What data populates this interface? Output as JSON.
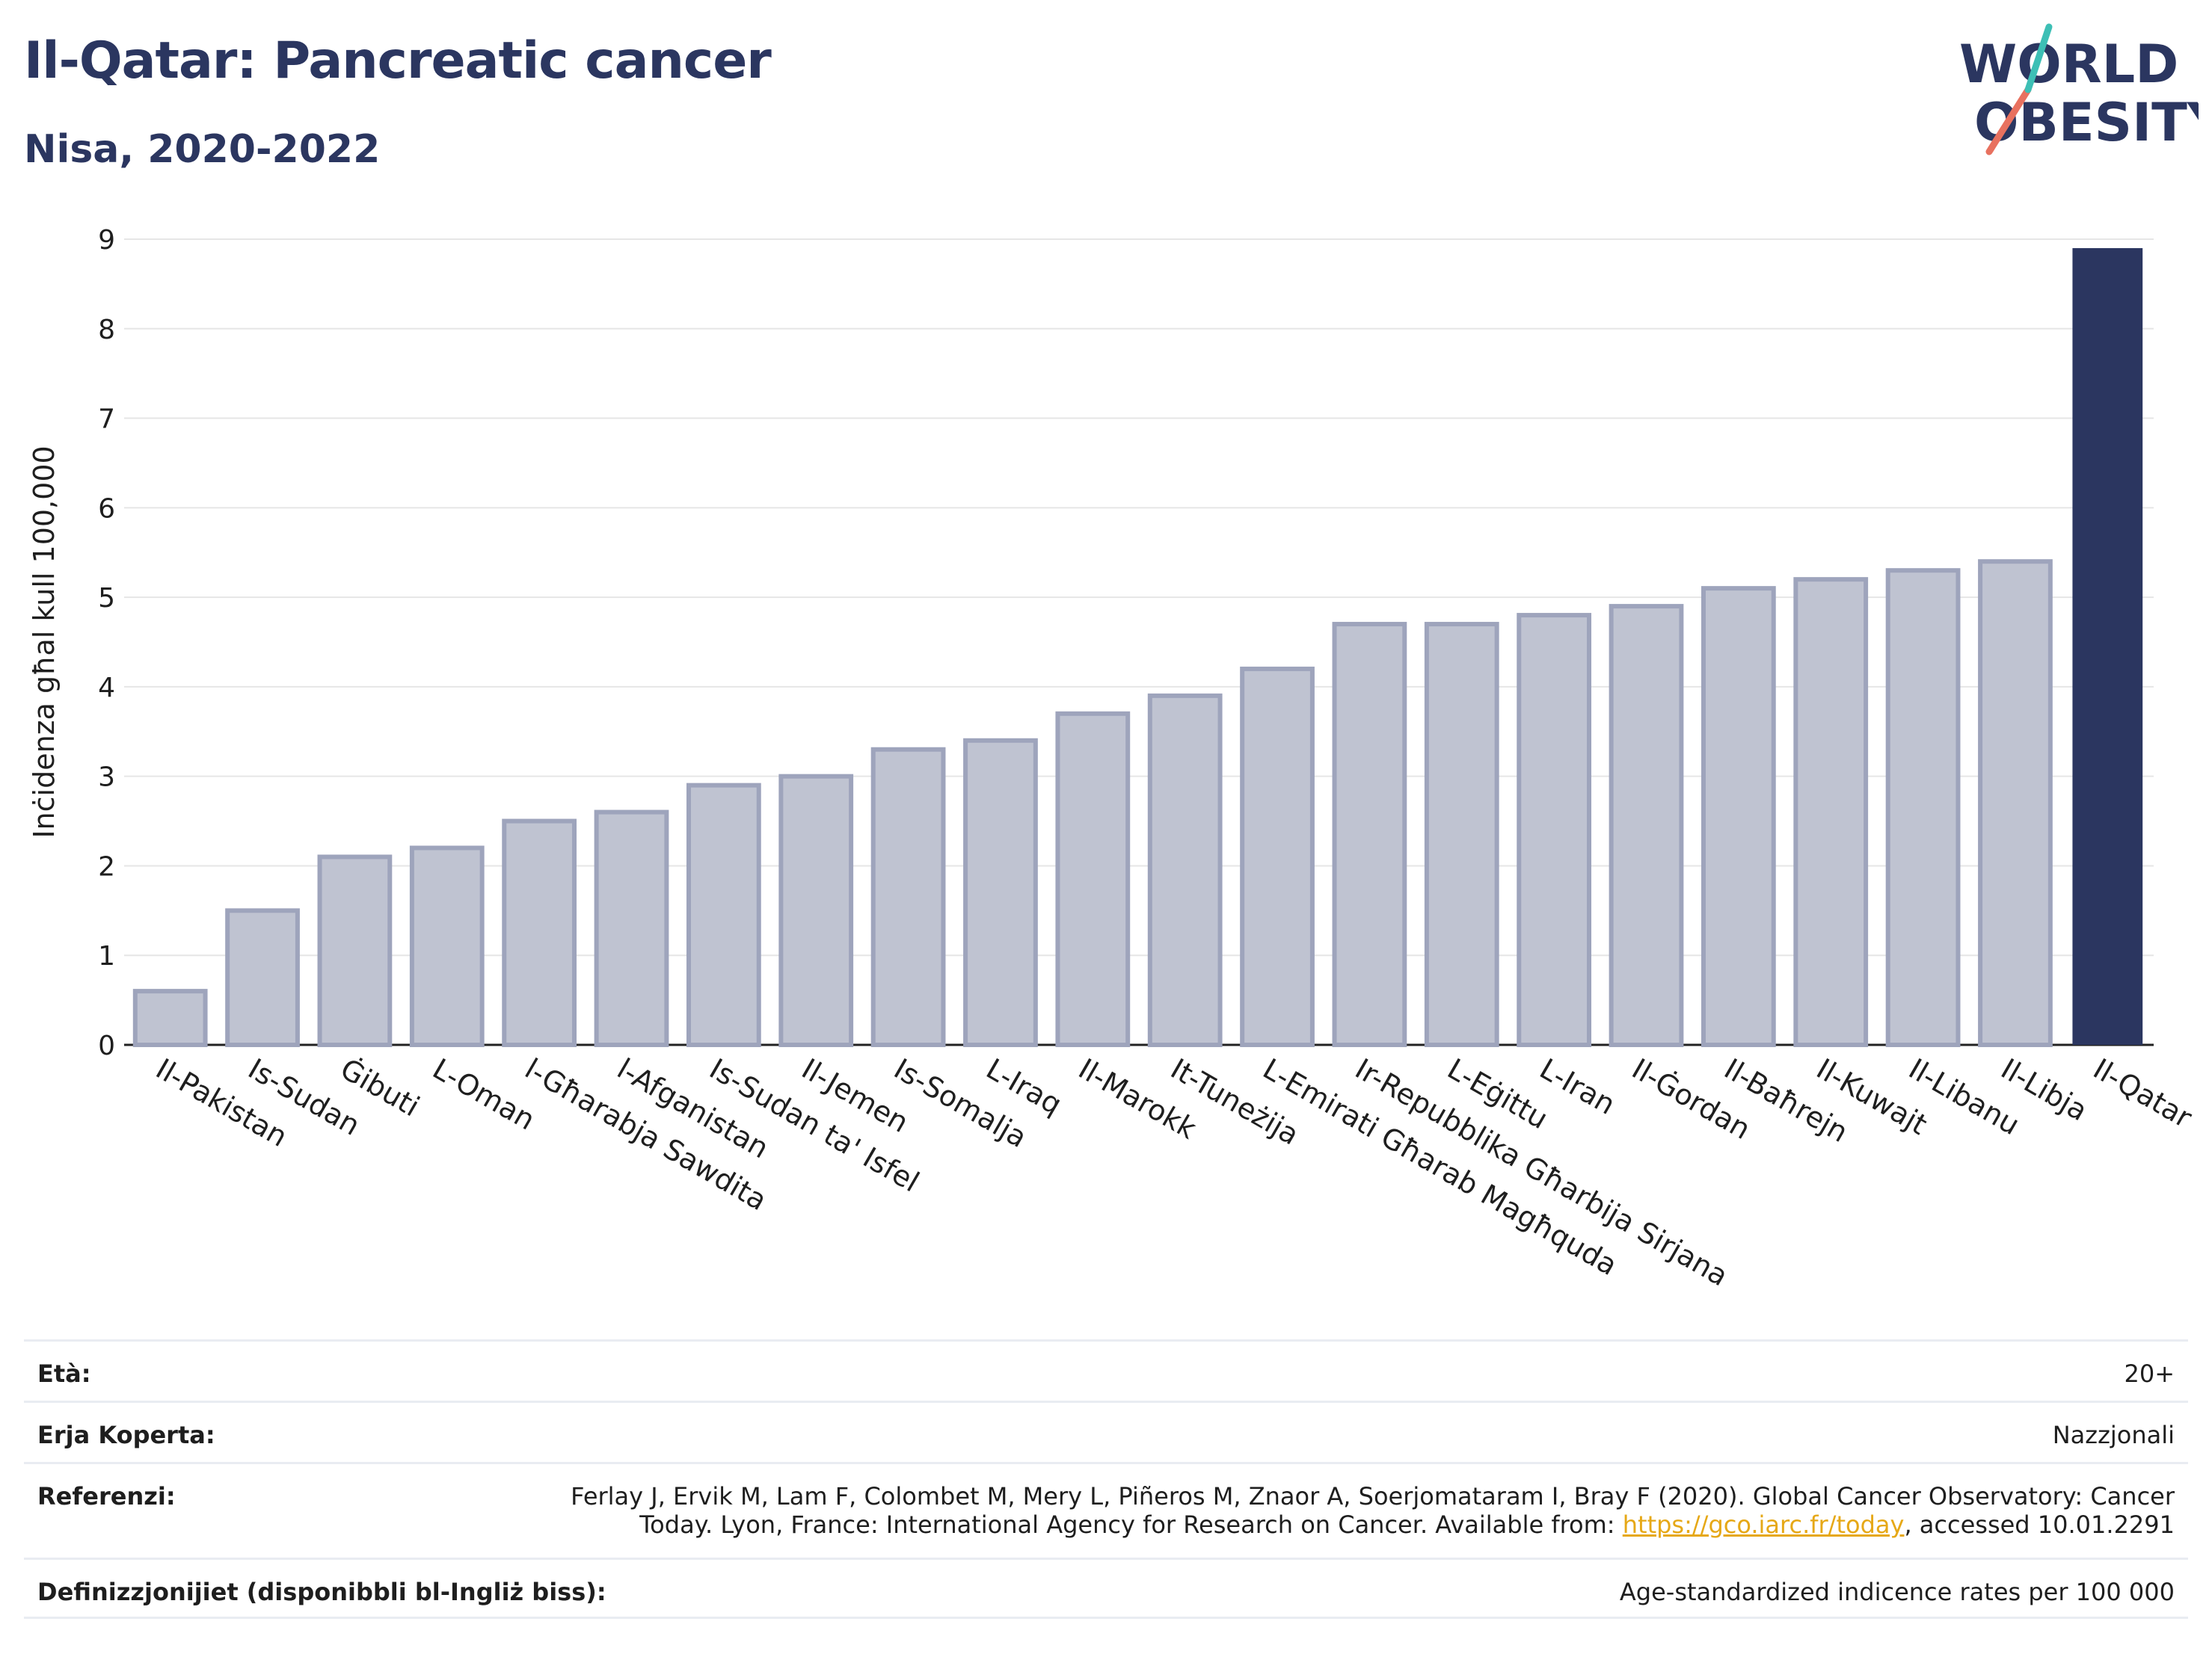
{
  "header": {
    "title": "Il-Qatar: Pancreatic cancer",
    "subtitle": "Nisa, 2020-2022"
  },
  "logo": {
    "line1": "WORLD",
    "line2": "OBESITY",
    "icon": "world-obesity-logo"
  },
  "colors": {
    "highlight": "#2b3660",
    "other_fill": "#bfc3d1",
    "other_stroke": "#9ea4bc",
    "grid": "#e6e6e6",
    "link": "#e6a817"
  },
  "chart_data": {
    "type": "bar",
    "ylabel": "Inċidenza għal kull 100,000",
    "ylim": [
      0,
      9
    ],
    "yticks": [
      "0",
      "1",
      "2",
      "3",
      "4",
      "5",
      "6",
      "7",
      "8",
      "9"
    ],
    "categories": [
      "Il-Pakistan",
      "Is-Sudan",
      "Ġibuti",
      "L-Oman",
      "l-Għarabja Sawdita",
      "l-Afganistan",
      "Is-Sudan ta' Isfel",
      "Il-Jemen",
      "Is-Somalja",
      "L-Iraq",
      "Il-Marokk",
      "It-Tuneżija",
      "L-Emirati Għarab Magħquda",
      "Ir-Repubblika Għarbija Sirjana",
      "L-Eġittu",
      "L-Iran",
      "Il-Ġordan",
      "Il-Baħrejn",
      "Il-Kuwajt",
      "Il-Libanu",
      "Il-Libja",
      "Il-Qatar"
    ],
    "values": [
      0.6,
      1.5,
      2.1,
      2.2,
      2.5,
      2.6,
      2.9,
      3.0,
      3.3,
      3.4,
      3.7,
      3.9,
      4.2,
      4.7,
      4.7,
      4.8,
      4.9,
      5.1,
      5.2,
      5.3,
      5.4,
      8.9
    ],
    "highlight": "Il-Qatar",
    "grid": true
  },
  "meta": {
    "age_label": "Età:",
    "age_value": "20+",
    "area_label": "Erja Koperta:",
    "area_value": "Nazzjonali",
    "ref_label": "Referenzi:",
    "ref_line1": "Ferlay J, Ervik M, Lam F, Colombet M, Mery L, Piñeros M, Znaor A, Soerjomataram I, Bray F (2020). Global Cancer Observatory: Cancer",
    "ref_line2_pre": "Today. Lyon, France: International Agency for Research on Cancer. Available from: ",
    "ref_link": "https://gco.iarc.fr/today",
    "ref_line2_post": ", accessed 10.01.2291",
    "def_label": "Definizzjonijiet (disponibbli bl-Ingliż biss):",
    "def_value": "Age-standardized indicence rates per 100 000"
  }
}
